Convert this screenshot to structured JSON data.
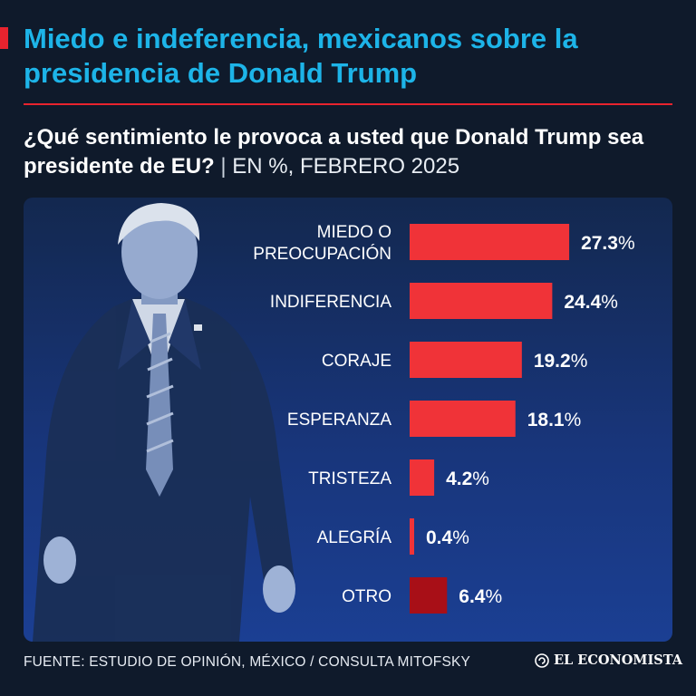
{
  "header": {
    "title": "Miedo e indeferencia, mexicanos sobre la presidencia de Donald Trump",
    "question": "¿Qué sentimiento le provoca a usted que Donald Trump sea presidente de EU?",
    "separator": "|",
    "unit_note": "EN %, FEBRERO 2025"
  },
  "chart_data": {
    "type": "bar",
    "orientation": "horizontal",
    "title": "¿Qué sentimiento le provoca a usted que Donald Trump sea presidente de EU?",
    "subtitle": "EN %, FEBRERO 2025",
    "categories": [
      [
        "MIEDO O",
        "PREOCUPACIÓN"
      ],
      [
        "INDIFERENCIA"
      ],
      [
        "CORAJE"
      ],
      [
        "ESPERANZA"
      ],
      [
        "TRISTEZA"
      ],
      [
        "ALEGRÍA"
      ],
      [
        "OTRO"
      ]
    ],
    "values": [
      27.3,
      24.4,
      19.2,
      18.1,
      4.2,
      0.4,
      6.4
    ],
    "value_labels": [
      "27.3",
      "24.4",
      "19.2",
      "18.1",
      "4.2",
      "0.4",
      "6.4"
    ],
    "unit": "%",
    "colors": [
      "#f03338",
      "#f03338",
      "#f03338",
      "#f03338",
      "#f03338",
      "#f03338",
      "#a80f17"
    ],
    "xlabel": "",
    "ylabel": "",
    "xlim": [
      0,
      30
    ]
  },
  "footer": {
    "source": "FUENTE: ESTUDIO DE OPINIÓN, MÉXICO / CONSULTA MITOFSKY",
    "brand": "EL ECONOMISTA"
  },
  "colors": {
    "background": "#0f1a2b",
    "headline": "#1db4e8",
    "accent": "#e8232e"
  }
}
